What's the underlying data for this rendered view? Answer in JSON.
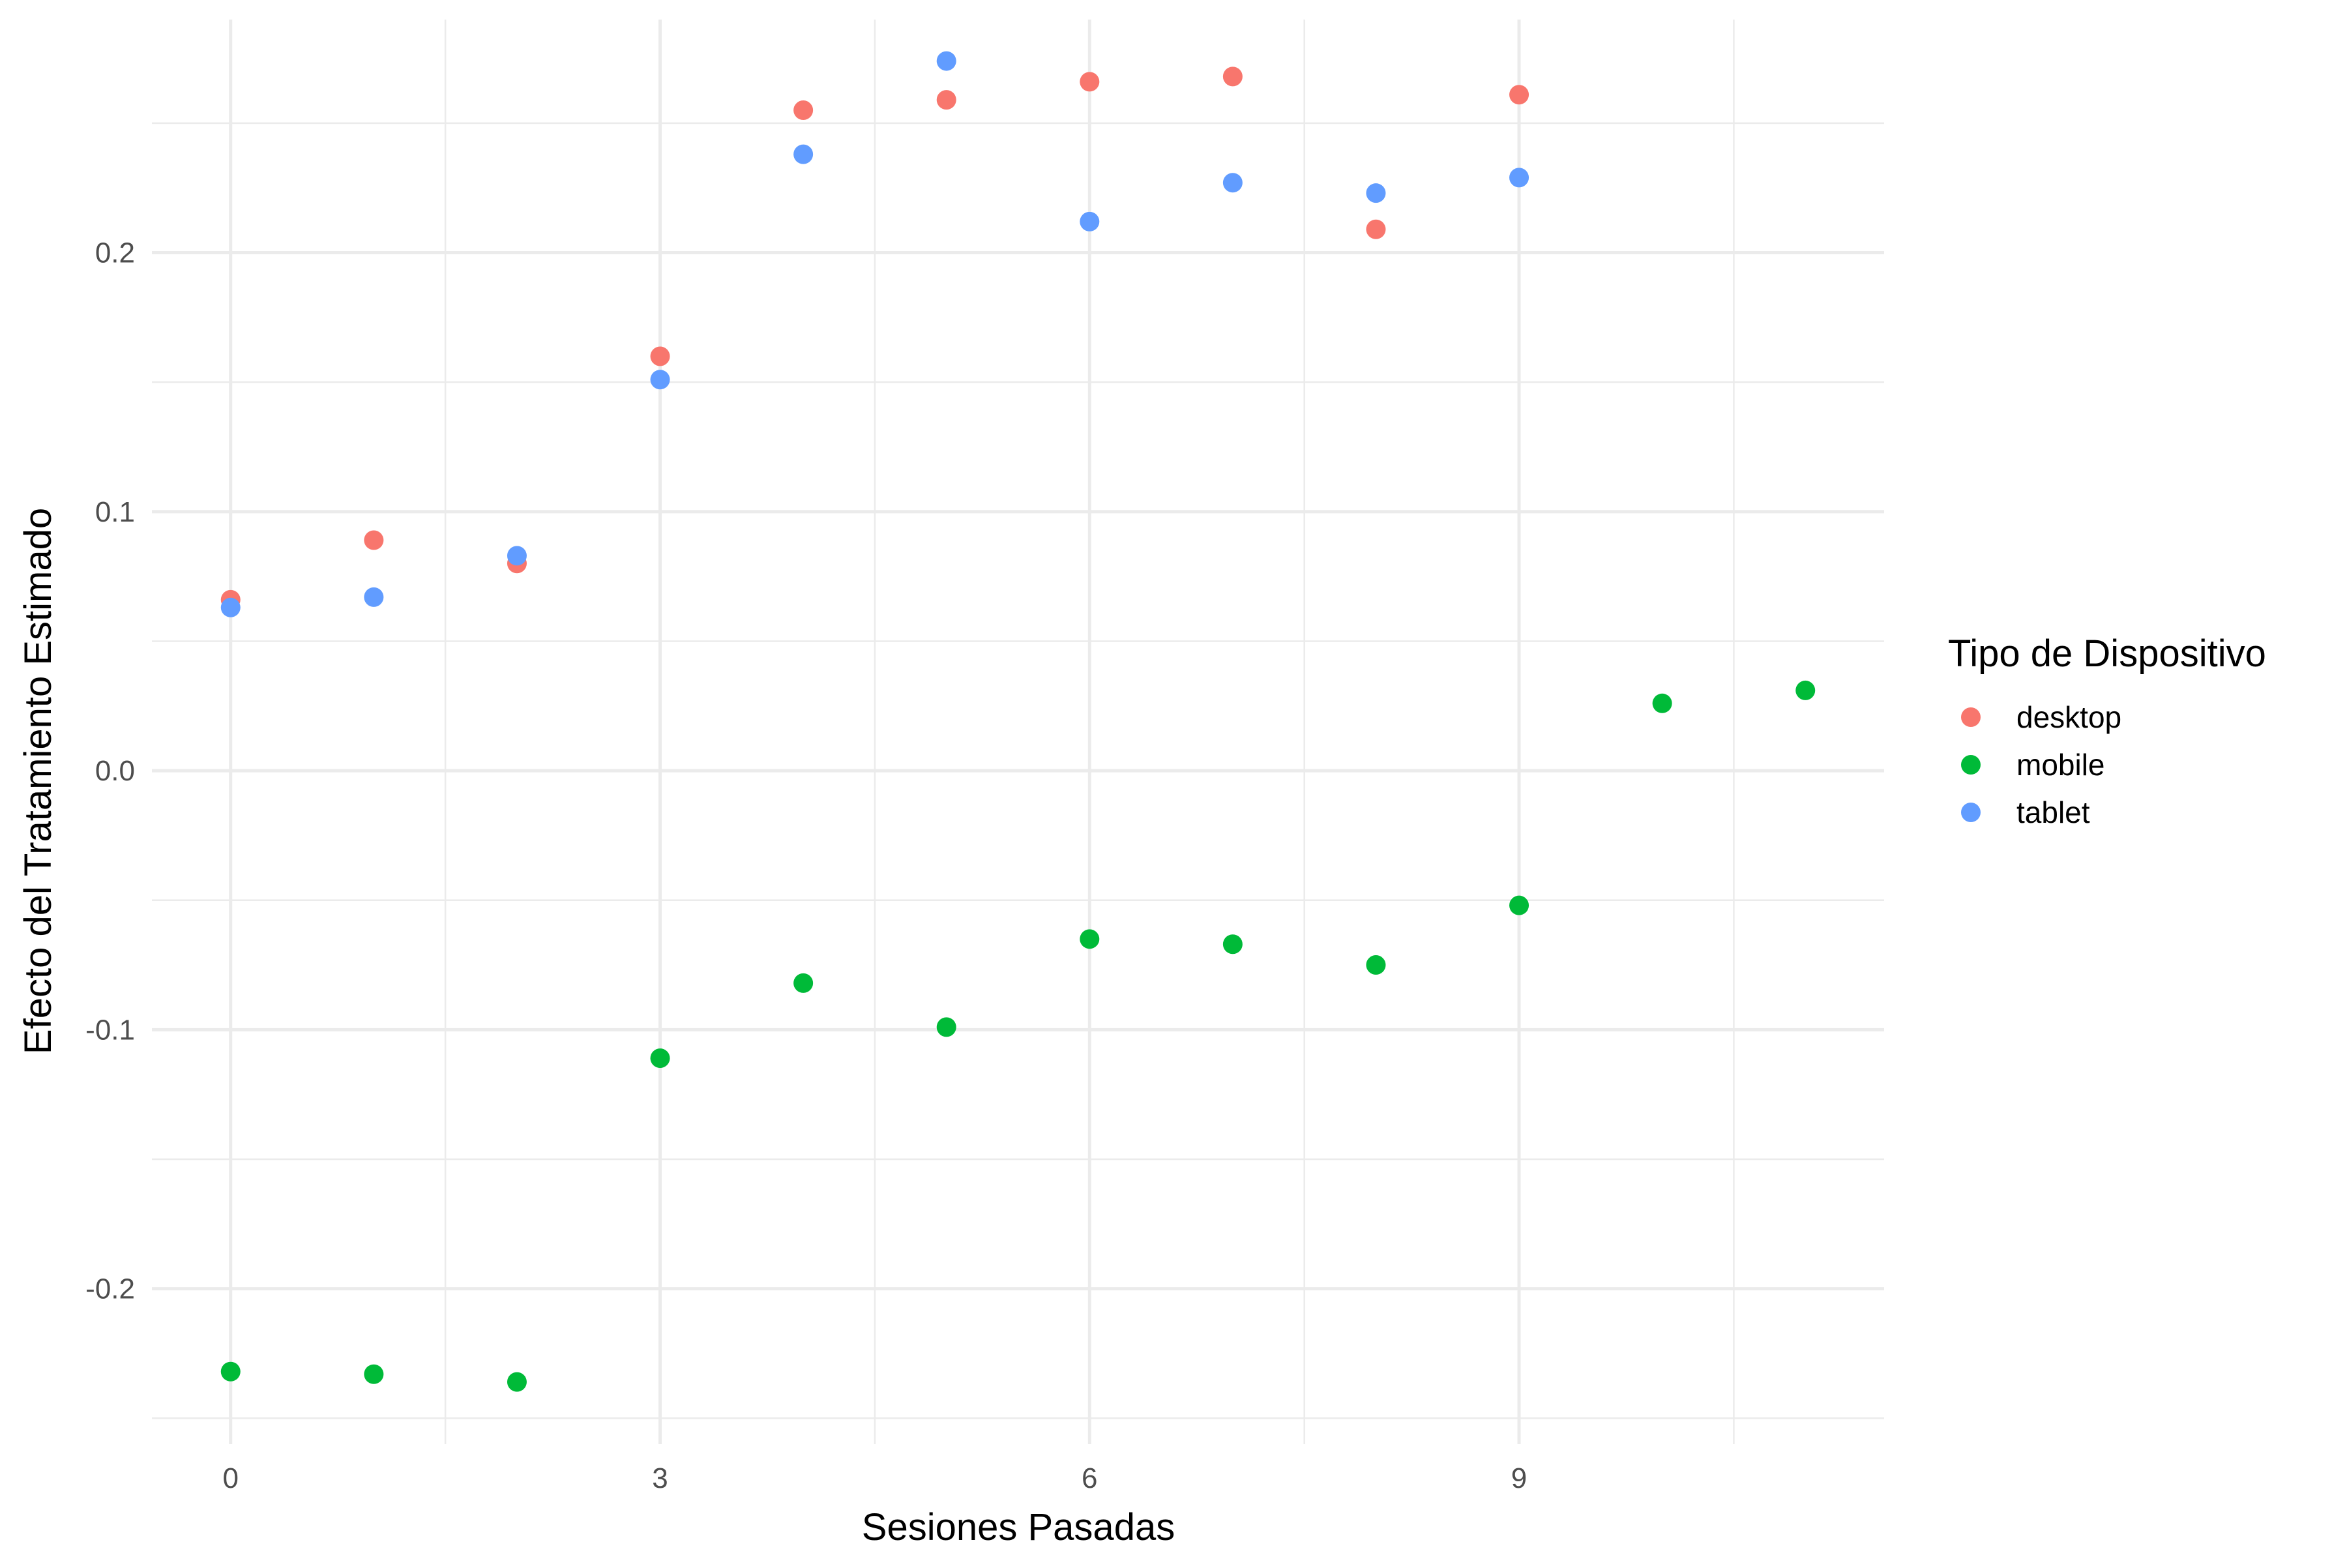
{
  "chart_data": {
    "type": "scatter",
    "title": "",
    "xlabel": "Sesiones Pasadas",
    "ylabel": "Efecto del Tratamiento Estimado",
    "xlim": [
      -0.55,
      11.55
    ],
    "ylim": [
      -0.26,
      0.29
    ],
    "x_ticks": [
      0,
      3,
      6,
      9
    ],
    "x_tick_labels": [
      "0",
      "3",
      "6",
      "9"
    ],
    "x_minor_ticks": [
      1.5,
      4.5,
      7.5,
      10.5
    ],
    "y_ticks": [
      -0.2,
      -0.1,
      0.0,
      0.1,
      0.2
    ],
    "y_tick_labels": [
      "-0.2",
      "-0.1",
      "0.0",
      "0.1",
      "0.2"
    ],
    "y_minor_ticks": [
      -0.25,
      -0.15,
      -0.05,
      0.05,
      0.15,
      0.25
    ],
    "grid": true,
    "legend": {
      "title": "Tipo de Dispositivo",
      "position": "right"
    },
    "series": [
      {
        "name": "desktop",
        "color": "#F8766D",
        "x": [
          0,
          1,
          2,
          3,
          4,
          5,
          6,
          7,
          8,
          9
        ],
        "y": [
          0.066,
          0.089,
          0.08,
          0.16,
          0.255,
          0.259,
          0.266,
          0.268,
          0.209,
          0.261
        ]
      },
      {
        "name": "mobile",
        "color": "#00BA38",
        "x": [
          0,
          1,
          2,
          3,
          4,
          5,
          6,
          7,
          8,
          9,
          10,
          11
        ],
        "y": [
          -0.232,
          -0.233,
          -0.236,
          -0.111,
          -0.082,
          -0.099,
          -0.065,
          -0.067,
          -0.075,
          -0.052,
          0.026,
          0.031
        ]
      },
      {
        "name": "tablet",
        "color": "#619CFF",
        "x": [
          0,
          1,
          2,
          3,
          4,
          5,
          6,
          7,
          8,
          9
        ],
        "y": [
          0.063,
          0.067,
          0.083,
          0.151,
          0.238,
          0.274,
          0.212,
          0.227,
          0.223,
          0.229
        ]
      }
    ]
  }
}
